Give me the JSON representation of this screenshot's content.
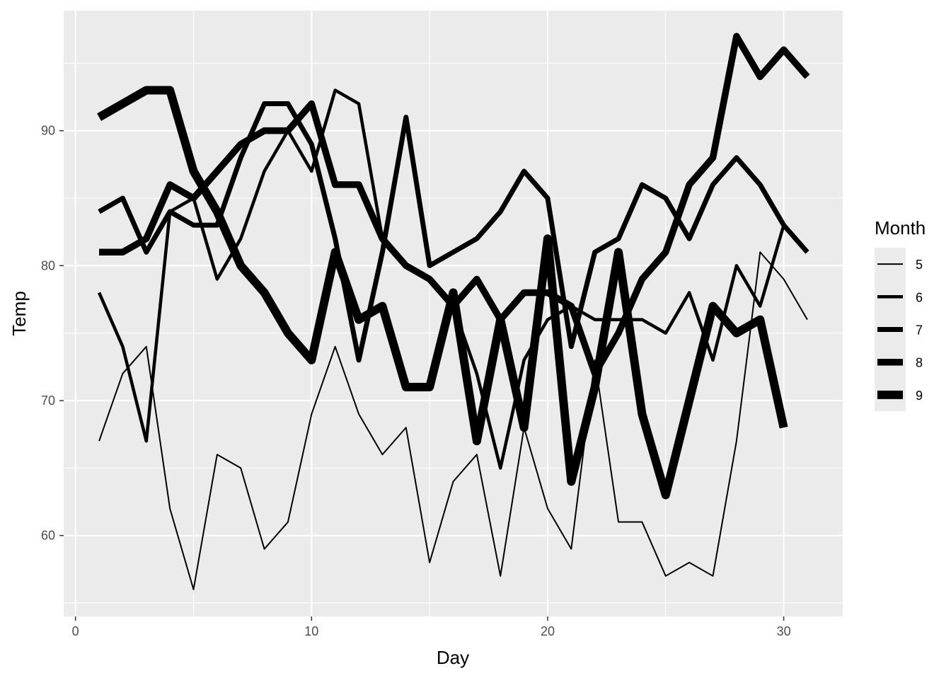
{
  "chart_data": {
    "type": "line",
    "xlabel": "Day",
    "ylabel": "Temp",
    "xlim": [
      -0.5,
      32.5
    ],
    "ylim": [
      54.0,
      98.9
    ],
    "x_ticks": [
      0,
      10,
      20,
      30
    ],
    "y_ticks": [
      60,
      70,
      80,
      90
    ],
    "grid": true,
    "line_color": "#000000",
    "panel_color": "#ebebeb",
    "grid_color": "#ffffff",
    "legend": {
      "title": "Month",
      "position": "right",
      "entries": [
        "5",
        "6",
        "7",
        "8",
        "9"
      ]
    },
    "series": [
      {
        "name": "5",
        "x": [
          1,
          2,
          3,
          4,
          5,
          6,
          7,
          8,
          9,
          10,
          11,
          12,
          13,
          14,
          15,
          16,
          17,
          18,
          19,
          20,
          21,
          22,
          23,
          24,
          25,
          26,
          27,
          28,
          29,
          30,
          31
        ],
        "y": [
          67,
          72,
          74,
          62,
          56,
          66,
          65,
          59,
          61,
          69,
          74,
          69,
          66,
          68,
          58,
          64,
          66,
          57,
          68,
          62,
          59,
          73,
          61,
          61,
          57,
          58,
          57,
          67,
          81,
          79,
          76
        ]
      },
      {
        "name": "6",
        "x": [
          1,
          2,
          3,
          4,
          5,
          6,
          7,
          8,
          9,
          10,
          11,
          12,
          13,
          14,
          15,
          16,
          17,
          18,
          19,
          20,
          21,
          22,
          23,
          24,
          25,
          26,
          27,
          28,
          29,
          30
        ],
        "y": [
          78,
          74,
          67,
          84,
          85,
          79,
          82,
          87,
          90,
          87,
          93,
          92,
          82,
          80,
          79,
          77,
          72,
          65,
          73,
          76,
          77,
          76,
          76,
          76,
          75,
          78,
          73,
          80,
          77,
          83
        ]
      },
      {
        "name": "7",
        "x": [
          1,
          2,
          3,
          4,
          5,
          6,
          7,
          8,
          9,
          10,
          11,
          12,
          13,
          14,
          15,
          16,
          17,
          18,
          19,
          20,
          21,
          22,
          23,
          24,
          25,
          26,
          27,
          28,
          29,
          30,
          31
        ],
        "y": [
          84,
          85,
          81,
          84,
          83,
          83,
          88,
          92,
          92,
          89,
          82,
          73,
          81,
          91,
          80,
          81,
          82,
          84,
          87,
          85,
          74,
          81,
          82,
          86,
          85,
          82,
          86,
          88,
          86,
          83,
          81
        ]
      },
      {
        "name": "8",
        "x": [
          1,
          2,
          3,
          4,
          5,
          6,
          7,
          8,
          9,
          10,
          11,
          12,
          13,
          14,
          15,
          16,
          17,
          18,
          19,
          20,
          21,
          22,
          23,
          24,
          25,
          26,
          27,
          28,
          29,
          30,
          31
        ],
        "y": [
          81,
          81,
          82,
          86,
          85,
          87,
          89,
          90,
          90,
          92,
          86,
          86,
          82,
          80,
          79,
          77,
          79,
          76,
          78,
          78,
          77,
          72,
          75,
          79,
          81,
          86,
          88,
          97,
          94,
          96,
          94
        ]
      },
      {
        "name": "9",
        "x": [
          1,
          2,
          3,
          4,
          5,
          6,
          7,
          8,
          9,
          10,
          11,
          12,
          13,
          14,
          15,
          16,
          17,
          18,
          19,
          20,
          21,
          22,
          23,
          24,
          25,
          26,
          27,
          28,
          29,
          30
        ],
        "y": [
          91,
          92,
          93,
          93,
          87,
          84,
          80,
          78,
          75,
          73,
          81,
          76,
          77,
          71,
          71,
          78,
          67,
          76,
          68,
          82,
          64,
          71,
          81,
          69,
          63,
          70,
          77,
          75,
          76,
          68
        ]
      }
    ]
  }
}
